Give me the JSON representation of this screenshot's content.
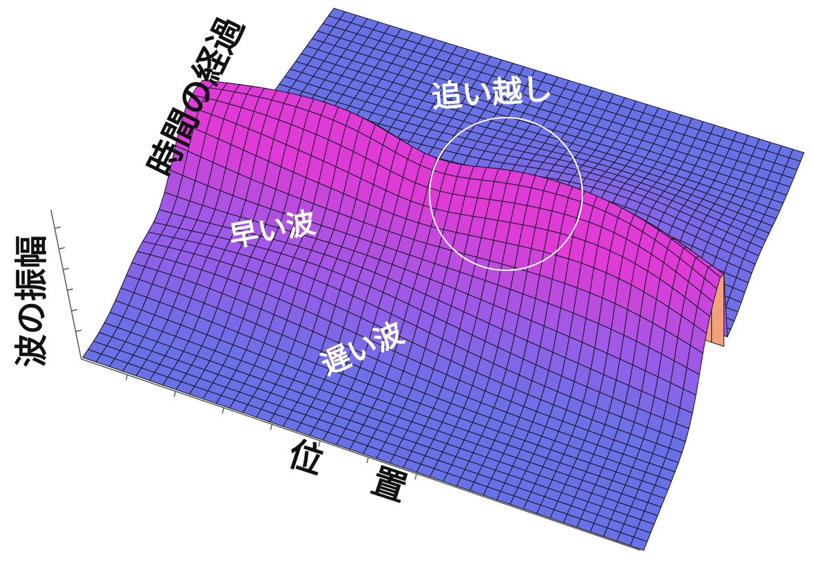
{
  "labels": {
    "time_axis": "時間の経過",
    "amplitude_axis": "波の振幅",
    "position_axis": "位 置",
    "fast_wave": "早い波",
    "slow_wave": "遅い波",
    "overtaking": "追い越し"
  },
  "colors": {
    "surface_low": "#5b78e6",
    "surface_mid": "#9a5ce8",
    "surface_high": "#e03bd6",
    "crest_top_left": "#f07ab2",
    "crest_top_edge": "#9df2b0",
    "crest_top_right": "#f2a27a",
    "grid_line": "#1a1a2a",
    "highlight_circle": "#ffffff"
  },
  "surface_grid": {
    "rows": 46,
    "cols": 42
  }
}
